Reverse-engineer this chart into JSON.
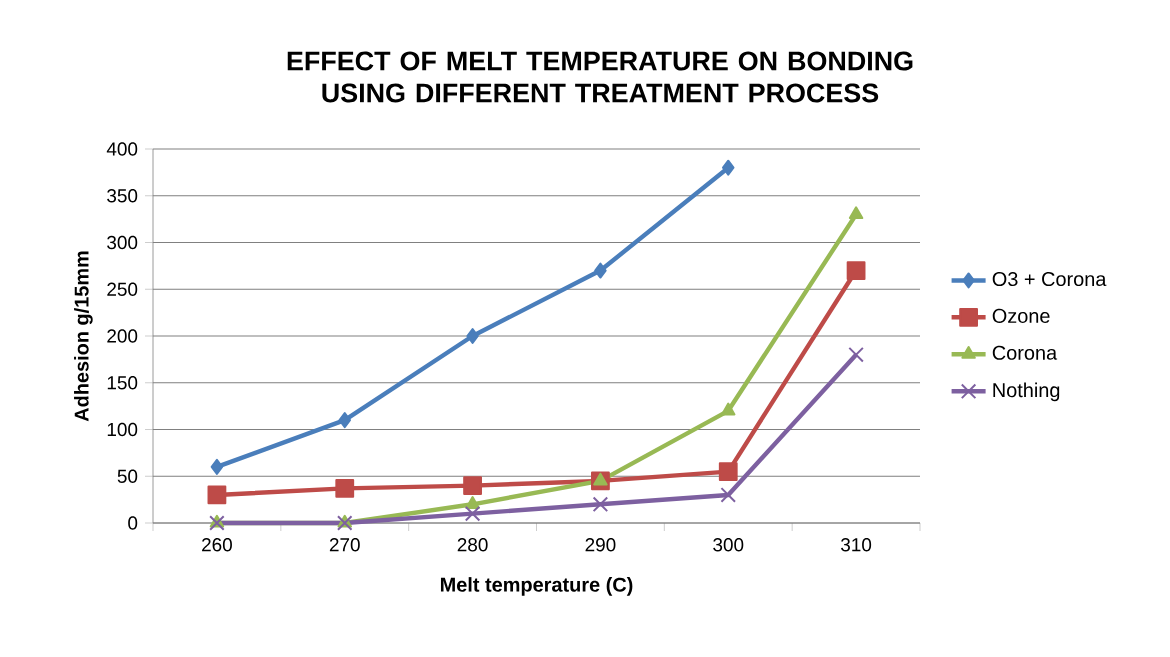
{
  "chart_data": {
    "type": "line",
    "title": "EFFECT OF MELT TEMPERATURE ON BONDING USING DIFFERENT TREATMENT PROCESS",
    "xlabel": "Melt temperature (C)",
    "ylabel": "Adhesion g/15mm",
    "categories": [
      "260",
      "270",
      "280",
      "290",
      "300",
      "310"
    ],
    "series": [
      {
        "name": "O3 + Corona",
        "color": "#4a7ebb",
        "marker": "diamond",
        "values": [
          60,
          110,
          200,
          270,
          380,
          null
        ]
      },
      {
        "name": "Ozone",
        "color": "#be4b48",
        "marker": "square",
        "values": [
          30,
          37,
          40,
          45,
          55,
          270
        ]
      },
      {
        "name": "Corona",
        "color": "#98b954",
        "marker": "triangle",
        "values": [
          0,
          0,
          20,
          45,
          120,
          330
        ]
      },
      {
        "name": "Nothing",
        "color": "#7d60a0",
        "marker": "cross",
        "values": [
          0,
          0,
          10,
          20,
          30,
          180
        ]
      }
    ],
    "ylim": [
      0,
      400
    ],
    "yticks": [
      0,
      50,
      100,
      150,
      200,
      250,
      300,
      350,
      400
    ],
    "grid": "y",
    "legend": "right"
  }
}
